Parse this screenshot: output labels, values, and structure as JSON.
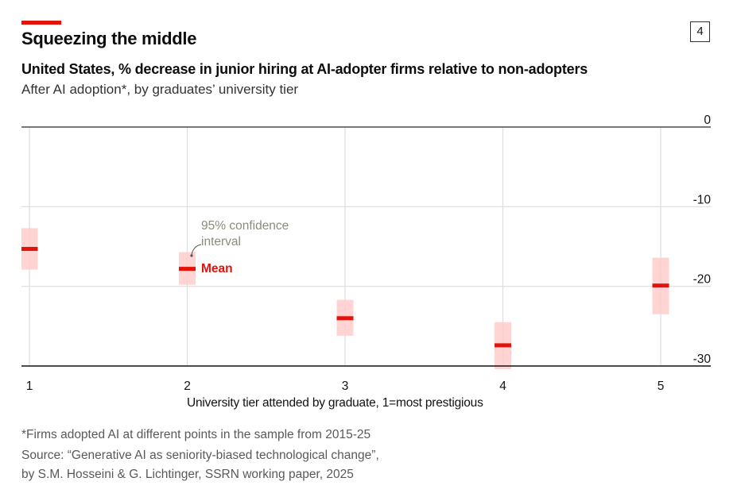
{
  "header": {
    "title": "Squeezing the middle",
    "subtitle": "United States, % decrease in junior hiring at AI-adopter firms relative to non-adopters",
    "subsubtitle": "After AI adoption*, by graduates’ university tier",
    "chart_number": "4"
  },
  "colors": {
    "accent": "#e3120b",
    "ci_fill": "#ffcccb",
    "annotation_gray": "#8c8c7d",
    "grid": "#dddddd"
  },
  "chart_data": {
    "type": "range",
    "title": "Squeezing the middle",
    "xlabel": "University tier attended by graduate, 1=most prestigious",
    "ylabel": "",
    "categories": [
      "1",
      "2",
      "3",
      "4",
      "5"
    ],
    "x": [
      1,
      2,
      3,
      4,
      5
    ],
    "ylim": [
      -30,
      0
    ],
    "yticks": [
      0,
      -10,
      -20,
      -30
    ],
    "ytick_labels": [
      "0",
      "-10",
      "-20",
      "-30"
    ],
    "grid": true,
    "series": [
      {
        "name": "Mean",
        "values": [
          -15.3,
          -17.8,
          -24.0,
          -27.4,
          -19.9
        ]
      },
      {
        "name": "95% confidence interval upper",
        "values": [
          -12.7,
          -15.7,
          -21.7,
          -24.5,
          -16.4
        ]
      },
      {
        "name": "95% confidence interval lower",
        "values": [
          -17.9,
          -19.8,
          -26.2,
          -30.4,
          -23.5
        ]
      }
    ],
    "annotations": {
      "ci_label_line1": "95% confidence",
      "ci_label_line2": "interval",
      "mean_label": "Mean"
    }
  },
  "footer": {
    "note": "*Firms adopted AI at different points in the sample from 2015-25",
    "source_line1": "Source: “Generative AI as seniority-biased technological change”,",
    "source_line2": "by S.M. Hosseini & G. Lichtinger, SSRN working paper, 2025"
  }
}
